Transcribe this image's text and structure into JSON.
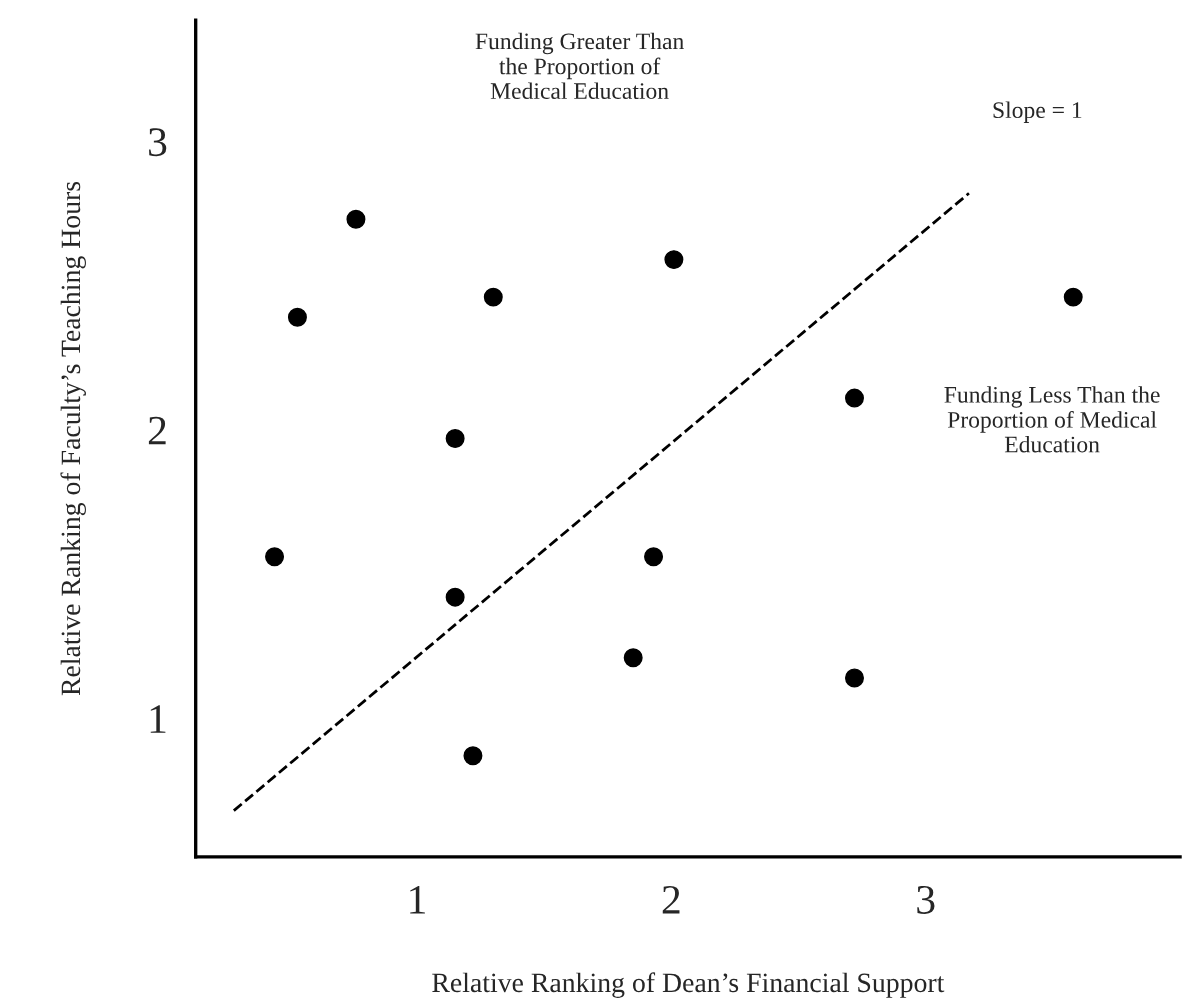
{
  "chart_data": {
    "type": "scatter",
    "xlabel": "Relative Ranking of Dean’s Financial Support",
    "ylabel": "Relative Ranking of Faculty’s Teaching Hours",
    "xlim": [
      0.13,
      4.0
    ],
    "ylim": [
      0.52,
      3.42
    ],
    "xticks": [
      1,
      2,
      3
    ],
    "yticks": [
      1,
      2,
      3
    ],
    "grid": false,
    "legend": false,
    "marker": "circle",
    "series": [
      {
        "color": "#000000",
        "x": [
          0.53,
          0.76,
          1.3,
          1.15,
          0.44,
          1.15,
          1.22,
          2.01,
          1.93,
          1.85,
          2.72,
          2.72,
          3.58
        ],
        "values": [
          2.39,
          2.73,
          2.46,
          1.97,
          1.56,
          1.42,
          0.87,
          2.59,
          1.56,
          1.21,
          2.11,
          1.14,
          2.46
        ]
      },
      {
        "type": "line",
        "line_style": "dashed",
        "marker": "none",
        "color": "#000000",
        "x": [
          0.28,
          3.17
        ],
        "values": [
          0.68,
          2.82
        ]
      }
    ],
    "annotations": [
      "Funding Greater Than\nthe Proportion of\nMedical Education",
      "Slope = 1",
      "Funding Less Than the\nProportion of Medical\nEducation"
    ]
  }
}
